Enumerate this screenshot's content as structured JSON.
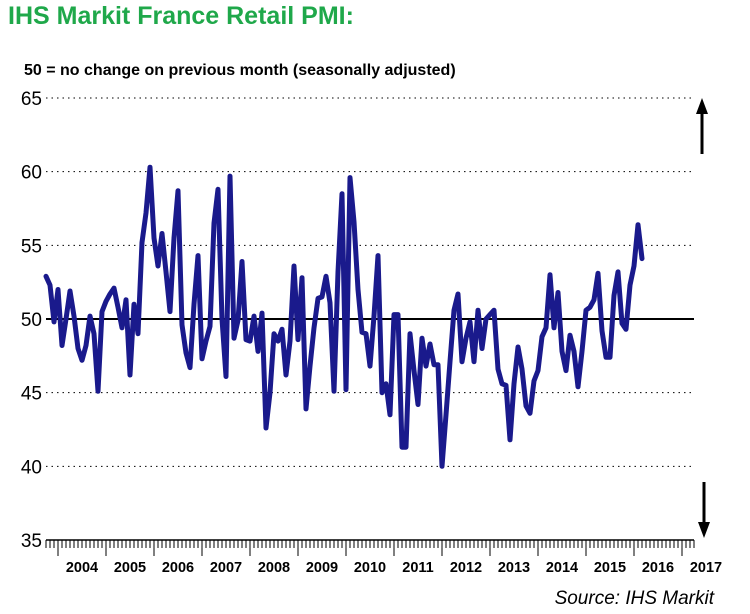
{
  "chart_data": {
    "type": "line",
    "title": "IHS Markit France Retail PMI:",
    "subtitle": "50 = no change on previous month (seasonally adjusted)",
    "source": "Source: IHS Markit",
    "ylim": [
      35,
      65
    ],
    "yticks": [
      35,
      40,
      45,
      50,
      55,
      60,
      65
    ],
    "reference_line": 50,
    "grid": "dotted horizontal",
    "line_color": "#1a1a8c",
    "x_start": 2003.75,
    "x_end": 2017.25,
    "year_labels": [
      "2004",
      "2005",
      "2006",
      "2007",
      "2008",
      "2009",
      "2010",
      "2011",
      "2012",
      "2013",
      "2014",
      "2015",
      "2016",
      "2017"
    ],
    "series": [
      {
        "name": "France Retail PMI",
        "x_start": 2003.75,
        "step_months": 1,
        "values": [
          52.9,
          52.3,
          49.8,
          52.0,
          48.2,
          50.0,
          51.9,
          50.2,
          48.0,
          47.2,
          48.2,
          50.2,
          49.0,
          45.1,
          50.5,
          51.2,
          51.7,
          52.1,
          50.8,
          49.4,
          51.3,
          46.2,
          51.0,
          49.0,
          55.2,
          57.2,
          60.3,
          55.5,
          53.6,
          55.8,
          53.2,
          50.5,
          55.5,
          58.7,
          49.6,
          47.7,
          46.7,
          51.0,
          54.3,
          47.3,
          48.5,
          49.5,
          56.5,
          58.8,
          50.0,
          46.1,
          59.7,
          48.7,
          49.9,
          53.9,
          48.6,
          48.5,
          50.2,
          47.8,
          50.4,
          42.6,
          45.0,
          49.0,
          48.5,
          49.3,
          46.2,
          48.5,
          53.6,
          48.6,
          52.8,
          43.9,
          46.8,
          49.4,
          51.4,
          51.5,
          52.9,
          51.1,
          45.1,
          53.2,
          58.5,
          45.2,
          59.6,
          56.6,
          52.0,
          49.1,
          49.0,
          46.8,
          50.2,
          54.3,
          45.0,
          45.6,
          43.5,
          50.3,
          50.3,
          41.3,
          41.3,
          49.0,
          46.5,
          44.2,
          48.7,
          46.8,
          48.3,
          46.9,
          46.9,
          40.0,
          43.5,
          47.1,
          50.6,
          51.7,
          47.1,
          48.7,
          49.8,
          47.1,
          50.6,
          48.0,
          50.0,
          50.3,
          50.6,
          46.6,
          45.6,
          45.5,
          41.8,
          45.6,
          48.1,
          46.6,
          44.1,
          43.6,
          45.8,
          46.5,
          48.8,
          49.4,
          53.0,
          49.4,
          51.8,
          47.8,
          46.5,
          48.9,
          47.8,
          45.4,
          47.8,
          50.6,
          50.8,
          51.3,
          53.1,
          49.2,
          47.4,
          47.4,
          51.6,
          53.2,
          49.7,
          49.3,
          52.3,
          53.6,
          56.4,
          54.1
        ]
      }
    ]
  }
}
